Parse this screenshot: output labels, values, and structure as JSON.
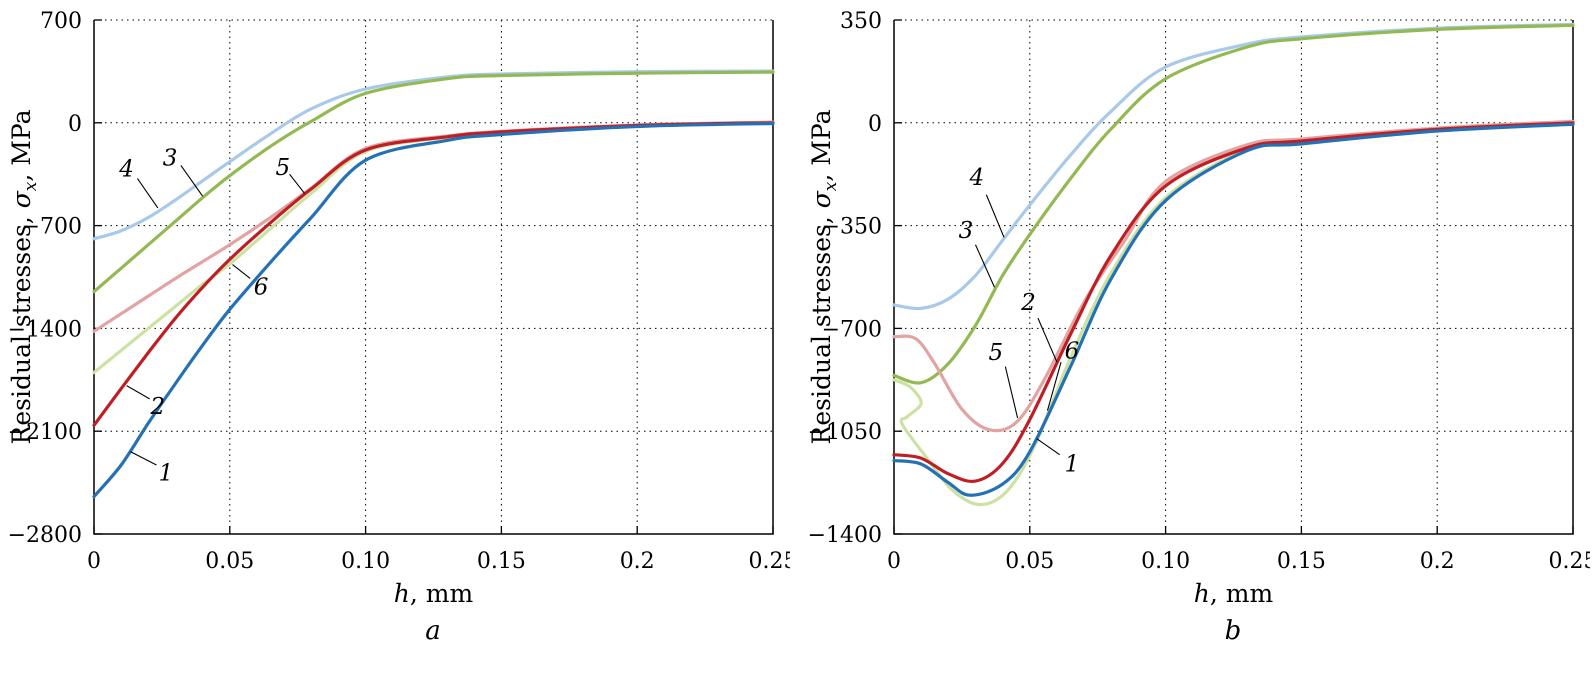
{
  "figure": {
    "description": "Residual stress distributions vs depth, two panels"
  },
  "chart_data": [
    {
      "id": "a",
      "type": "line",
      "caption": "a",
      "xlabel_var": "h",
      "xlabel_rest": ", mm",
      "ylabel_pre": "Residual stresses, ",
      "ylabel_var": "σ",
      "ylabel_sub": "x",
      "ylabel_rest": ", MPa",
      "xlim": [
        0,
        0.25
      ],
      "ylim": [
        -2800,
        700
      ],
      "grid": "dotted",
      "xticks": [
        {
          "v": 0,
          "t": "0"
        },
        {
          "v": 0.05,
          "t": "0.05"
        },
        {
          "v": 0.1,
          "t": "0.10"
        },
        {
          "v": 0.15,
          "t": "0.15"
        },
        {
          "v": 0.2,
          "t": "0.2"
        },
        {
          "v": 0.25,
          "t": "0.25"
        }
      ],
      "yticks": [
        {
          "v": 700,
          "t": "700"
        },
        {
          "v": 0,
          "t": "0"
        },
        {
          "v": -700,
          "t": "−700"
        },
        {
          "v": -1400,
          "t": "−1400"
        },
        {
          "v": -2100,
          "t": "−2100"
        },
        {
          "v": -2800,
          "t": "−2800"
        }
      ],
      "series": [
        {
          "name": "4",
          "color": "#a8c9e8",
          "width": 3.2,
          "points": [
            [
              0,
              -790
            ],
            [
              0.01,
              -735
            ],
            [
              0.02,
              -645
            ],
            [
              0.03,
              -525
            ],
            [
              0.04,
              -395
            ],
            [
              0.05,
              -265
            ],
            [
              0.065,
              -75
            ],
            [
              0.08,
              95
            ],
            [
              0.1,
              230
            ],
            [
              0.13,
              312
            ],
            [
              0.15,
              332
            ],
            [
              0.2,
              348
            ],
            [
              0.25,
              352
            ]
          ]
        },
        {
          "name": "3",
          "color": "#93b953",
          "width": 3.2,
          "points": [
            [
              0,
              -1150
            ],
            [
              0.01,
              -990
            ],
            [
              0.02,
              -830
            ],
            [
              0.03,
              -670
            ],
            [
              0.04,
              -510
            ],
            [
              0.05,
              -360
            ],
            [
              0.065,
              -160
            ],
            [
              0.08,
              10
            ],
            [
              0.1,
              200
            ],
            [
              0.13,
              300
            ],
            [
              0.15,
              322
            ],
            [
              0.2,
              338
            ],
            [
              0.25,
              345
            ]
          ]
        },
        {
          "name": "6",
          "color": "#cce2a3",
          "width": 3.2,
          "points": [
            [
              0,
              -1700
            ],
            [
              0.01,
              -1550
            ],
            [
              0.02,
              -1400
            ],
            [
              0.03,
              -1250
            ],
            [
              0.04,
              -1100
            ],
            [
              0.05,
              -960
            ],
            [
              0.065,
              -720
            ],
            [
              0.08,
              -480
            ],
            [
              0.1,
              -195
            ],
            [
              0.13,
              -100
            ],
            [
              0.15,
              -68
            ],
            [
              0.2,
              -20
            ],
            [
              0.25,
              -3
            ]
          ]
        },
        {
          "name": "5",
          "color": "#e2a3a1",
          "width": 3.2,
          "points": [
            [
              0,
              -1420
            ],
            [
              0.01,
              -1300
            ],
            [
              0.02,
              -1180
            ],
            [
              0.03,
              -1060
            ],
            [
              0.04,
              -945
            ],
            [
              0.05,
              -830
            ],
            [
              0.065,
              -645
            ],
            [
              0.08,
              -445
            ],
            [
              0.1,
              -175
            ],
            [
              0.13,
              -90
            ],
            [
              0.15,
              -58
            ],
            [
              0.2,
              -15
            ],
            [
              0.25,
              5
            ]
          ]
        },
        {
          "name": "2",
          "color": "#bf1e24",
          "width": 3.2,
          "points": [
            [
              0,
              -2060
            ],
            [
              0.01,
              -1810
            ],
            [
              0.02,
              -1565
            ],
            [
              0.03,
              -1330
            ],
            [
              0.04,
              -1120
            ],
            [
              0.05,
              -930
            ],
            [
              0.065,
              -680
            ],
            [
              0.08,
              -450
            ],
            [
              0.1,
              -185
            ],
            [
              0.13,
              -95
            ],
            [
              0.15,
              -62
            ],
            [
              0.2,
              -18
            ],
            [
              0.25,
              0
            ]
          ]
        },
        {
          "name": "1",
          "color": "#2471b5",
          "width": 3.2,
          "points": [
            [
              0,
              -2545
            ],
            [
              0.01,
              -2330
            ],
            [
              0.02,
              -2045
            ],
            [
              0.03,
              -1775
            ],
            [
              0.04,
              -1515
            ],
            [
              0.05,
              -1270
            ],
            [
              0.065,
              -950
            ],
            [
              0.08,
              -645
            ],
            [
              0.1,
              -255
            ],
            [
              0.13,
              -120
            ],
            [
              0.15,
              -80
            ],
            [
              0.2,
              -25
            ],
            [
              0.25,
              -5
            ]
          ]
        }
      ],
      "annotations": [
        {
          "text": "4",
          "tx": 0.012,
          "ty": -310,
          "line": [
            0.016,
            -380,
            0.0235,
            -580
          ]
        },
        {
          "text": "3",
          "tx": 0.028,
          "ty": -235,
          "line": [
            0.032,
            -290,
            0.04,
            -500
          ]
        },
        {
          "text": "5",
          "tx": 0.0695,
          "ty": -300,
          "line": [
            0.072,
            -350,
            0.0775,
            -480
          ]
        },
        {
          "text": "6",
          "tx": 0.0615,
          "ty": -1115,
          "line": [
            0.0575,
            -1060,
            0.051,
            -965
          ]
        },
        {
          "text": "2",
          "tx": 0.0235,
          "ty": -1930,
          "line": [
            0.0205,
            -1880,
            0.012,
            -1790
          ]
        },
        {
          "text": "1",
          "tx": 0.0265,
          "ty": -2380,
          "line": [
            0.023,
            -2330,
            0.0135,
            -2240
          ]
        }
      ]
    },
    {
      "id": "b",
      "type": "line",
      "caption": "b",
      "xlabel_var": "h",
      "xlabel_rest": ", mm",
      "ylabel_pre": "Residual stresses, ",
      "ylabel_var": "σ",
      "ylabel_sub": "x",
      "ylabel_rest": ", MPa",
      "xlim": [
        0,
        0.25
      ],
      "ylim": [
        -1400,
        350
      ],
      "grid": "dotted",
      "xticks": [
        {
          "v": 0,
          "t": "0"
        },
        {
          "v": 0.05,
          "t": "0.05"
        },
        {
          "v": 0.1,
          "t": "0.10"
        },
        {
          "v": 0.15,
          "t": "0.15"
        },
        {
          "v": 0.2,
          "t": "0.2"
        },
        {
          "v": 0.25,
          "t": "0.25"
        }
      ],
      "yticks": [
        {
          "v": 350,
          "t": "350"
        },
        {
          "v": 0,
          "t": "0"
        },
        {
          "v": -350,
          "t": "−350"
        },
        {
          "v": -700,
          "t": "−700"
        },
        {
          "v": -1050,
          "t": "−1050"
        },
        {
          "v": -1400,
          "t": "−1400"
        }
      ],
      "series": [
        {
          "name": "4",
          "color": "#a8c9e8",
          "width": 3.2,
          "points": [
            [
              0,
              -620
            ],
            [
              0.01,
              -632
            ],
            [
              0.02,
              -600
            ],
            [
              0.03,
              -520
            ],
            [
              0.04,
              -400
            ],
            [
              0.05,
              -280
            ],
            [
              0.065,
              -110
            ],
            [
              0.08,
              40
            ],
            [
              0.1,
              190
            ],
            [
              0.13,
              268
            ],
            [
              0.15,
              292
            ],
            [
              0.2,
              322
            ],
            [
              0.25,
              335
            ]
          ]
        },
        {
          "name": "3",
          "color": "#93b953",
          "width": 3.2,
          "points": [
            [
              0,
              -860
            ],
            [
              0.01,
              -885
            ],
            [
              0.02,
              -820
            ],
            [
              0.03,
              -690
            ],
            [
              0.04,
              -520
            ],
            [
              0.05,
              -380
            ],
            [
              0.065,
              -190
            ],
            [
              0.08,
              -20
            ],
            [
              0.1,
              150
            ],
            [
              0.13,
              258
            ],
            [
              0.15,
              286
            ],
            [
              0.2,
              318
            ],
            [
              0.25,
              332
            ]
          ]
        },
        {
          "name": "6",
          "color": "#cce2a3",
          "width": 3.2,
          "points": [
            [
              0,
              -875
            ],
            [
              0.006,
              -900
            ],
            [
              0.01,
              -955
            ],
            [
              0.005,
              -1000
            ],
            [
              0.003,
              -1025
            ],
            [
              0.012,
              -1140
            ],
            [
              0.022,
              -1255
            ],
            [
              0.032,
              -1300
            ],
            [
              0.042,
              -1250
            ],
            [
              0.052,
              -1095
            ],
            [
              0.065,
              -800
            ],
            [
              0.08,
              -510
            ],
            [
              0.1,
              -255
            ],
            [
              0.13,
              -90
            ],
            [
              0.15,
              -65
            ],
            [
              0.2,
              -22
            ],
            [
              0.25,
              0
            ]
          ]
        },
        {
          "name": "5",
          "color": "#e2a3a1",
          "width": 3.2,
          "points": [
            [
              0,
              -728
            ],
            [
              0.008,
              -735
            ],
            [
              0.015,
              -820
            ],
            [
              0.025,
              -975
            ],
            [
              0.035,
              -1045
            ],
            [
              0.045,
              -1020
            ],
            [
              0.055,
              -880
            ],
            [
              0.07,
              -610
            ],
            [
              0.085,
              -400
            ],
            [
              0.1,
              -200
            ],
            [
              0.13,
              -75
            ],
            [
              0.15,
              -55
            ],
            [
              0.2,
              -18
            ],
            [
              0.25,
              5
            ]
          ]
        },
        {
          "name": "2",
          "color": "#bf1e24",
          "width": 3.2,
          "points": [
            [
              0,
              -1130
            ],
            [
              0.01,
              -1142
            ],
            [
              0.02,
              -1195
            ],
            [
              0.03,
              -1220
            ],
            [
              0.04,
              -1160
            ],
            [
              0.05,
              -1010
            ],
            [
              0.065,
              -720
            ],
            [
              0.08,
              -450
            ],
            [
              0.1,
              -215
            ],
            [
              0.13,
              -85
            ],
            [
              0.15,
              -62
            ],
            [
              0.2,
              -22
            ],
            [
              0.25,
              0
            ]
          ]
        },
        {
          "name": "1",
          "color": "#2471b5",
          "width": 3.2,
          "points": [
            [
              0,
              -1150
            ],
            [
              0.01,
              -1162
            ],
            [
              0.02,
              -1225
            ],
            [
              0.028,
              -1268
            ],
            [
              0.04,
              -1230
            ],
            [
              0.05,
              -1120
            ],
            [
              0.065,
              -830
            ],
            [
              0.08,
              -530
            ],
            [
              0.1,
              -265
            ],
            [
              0.13,
              -95
            ],
            [
              0.15,
              -72
            ],
            [
              0.2,
              -28
            ],
            [
              0.25,
              -5
            ]
          ]
        }
      ],
      "annotations": [
        {
          "text": "4",
          "tx": 0.0305,
          "ty": -185,
          "line": [
            0.034,
            -245,
            0.0405,
            -390
          ]
        },
        {
          "text": "3",
          "tx": 0.0265,
          "ty": -365,
          "line": [
            0.03,
            -415,
            0.037,
            -560
          ]
        },
        {
          "text": "2",
          "tx": 0.0495,
          "ty": -610,
          "line": [
            0.053,
            -665,
            0.06,
            -815
          ]
        },
        {
          "text": "5",
          "tx": 0.0375,
          "ty": -780,
          "line": [
            0.041,
            -830,
            0.0455,
            -1005
          ]
        },
        {
          "text": "6",
          "tx": 0.0655,
          "ty": -775,
          "line": [
            0.0615,
            -815,
            0.0565,
            -980
          ]
        },
        {
          "text": "1",
          "tx": 0.0655,
          "ty": -1160,
          "line": [
            0.061,
            -1130,
            0.0525,
            -1075
          ]
        }
      ]
    }
  ]
}
